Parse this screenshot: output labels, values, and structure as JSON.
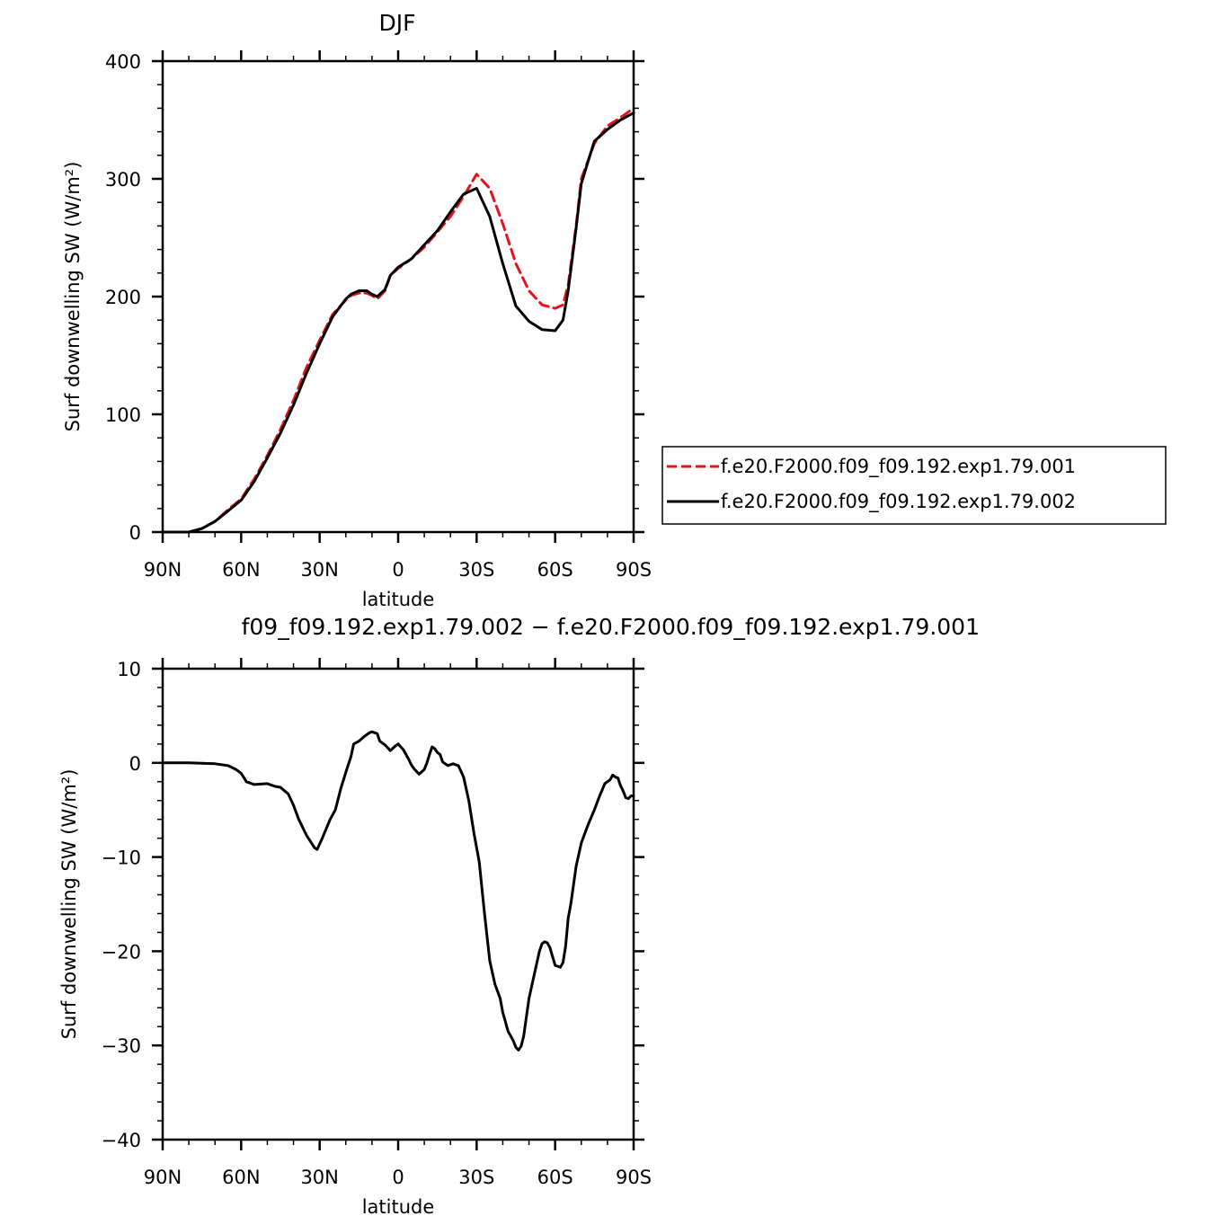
{
  "chart_data": [
    {
      "type": "line",
      "title": "DJF",
      "xlabel": "latitude",
      "ylabel": "Surf downwelling SW (W/m²)",
      "xlim": [
        -90,
        90
      ],
      "ylim": [
        0,
        400
      ],
      "x_ticks": [
        -90,
        -60,
        -30,
        0,
        30,
        60,
        90
      ],
      "x_tick_labels": [
        "90N",
        "60N",
        "30N",
        "0",
        "30S",
        "60S",
        "90S"
      ],
      "y_ticks": [
        0,
        100,
        200,
        300,
        400
      ],
      "y_tick_labels": [
        "0",
        "100",
        "200",
        "300",
        "400"
      ],
      "grid": false,
      "legend_position": "right",
      "series": [
        {
          "name": "f.e20.F2000.f09_f09.192.exp1.79.001",
          "color": "#e8101a",
          "dash": "dashed",
          "x": [
            -90,
            -80,
            -75,
            -70,
            -65,
            -60,
            -55,
            -50,
            -45,
            -40,
            -35,
            -30,
            -25,
            -20,
            -18,
            -15,
            -12,
            -10,
            -8,
            -5,
            -3,
            0,
            5,
            10,
            15,
            20,
            25,
            30,
            35,
            40,
            45,
            50,
            55,
            60,
            63,
            65,
            68,
            70,
            75,
            80,
            85,
            90
          ],
          "y": [
            0,
            0,
            3,
            9,
            19,
            28,
            45,
            65,
            87,
            112,
            140,
            163,
            185,
            197,
            201,
            203,
            203,
            201,
            198,
            205,
            218,
            224,
            232,
            242,
            255,
            268,
            285,
            304,
            292,
            262,
            228,
            205,
            193,
            190,
            193,
            210,
            260,
            300,
            330,
            345,
            352,
            360
          ]
        },
        {
          "name": "f.e20.F2000.f09_f09.192.exp1.79.002",
          "color": "#000000",
          "dash": "solid",
          "x": [
            -90,
            -80,
            -75,
            -70,
            -65,
            -60,
            -55,
            -50,
            -45,
            -40,
            -35,
            -30,
            -25,
            -20,
            -18,
            -15,
            -12,
            -10,
            -8,
            -5,
            -3,
            0,
            5,
            10,
            15,
            20,
            25,
            30,
            35,
            40,
            45,
            50,
            55,
            60,
            63,
            65,
            68,
            70,
            75,
            80,
            85,
            90
          ],
          "y": [
            0,
            0,
            3,
            9,
            18,
            27,
            43,
            63,
            84,
            108,
            135,
            160,
            183,
            198,
            202,
            205,
            205,
            202,
            200,
            206,
            218,
            225,
            232,
            244,
            256,
            272,
            287,
            292,
            268,
            228,
            192,
            179,
            172,
            171,
            180,
            205,
            258,
            296,
            332,
            342,
            350,
            356
          ]
        }
      ]
    },
    {
      "type": "line",
      "title": "f09_f09.192.exp1.79.002 − f.e20.F2000.f09_f09.192.exp1.79.001",
      "xlabel": "latitude",
      "ylabel": "Surf downwelling SW (W/m²)",
      "xlim": [
        -90,
        90
      ],
      "ylim": [
        -40,
        10
      ],
      "x_ticks": [
        -90,
        -60,
        -30,
        0,
        30,
        60,
        90
      ],
      "x_tick_labels": [
        "90N",
        "60N",
        "30N",
        "0",
        "30S",
        "60S",
        "90S"
      ],
      "y_ticks": [
        -40,
        -30,
        -20,
        -10,
        0,
        10
      ],
      "y_tick_labels": [
        "−40",
        "−30",
        "−20",
        "−10",
        "0",
        "10"
      ],
      "grid": false,
      "series": [
        {
          "color": "#000000",
          "dash": "solid",
          "x": [
            -90,
            -80,
            -70,
            -65,
            -62,
            -60,
            -58,
            -55,
            -50,
            -47,
            -45,
            -42,
            -40,
            -38,
            -35,
            -32,
            -31,
            -29,
            -26,
            -24,
            -22,
            -20,
            -18,
            -17,
            -15,
            -13,
            -11,
            -10,
            -8,
            -7,
            -5,
            -3,
            -1,
            0,
            2,
            4,
            5,
            6,
            8,
            10,
            11,
            12,
            13,
            14,
            15,
            16,
            17,
            19,
            21,
            23,
            25,
            27,
            29,
            31,
            33,
            35,
            37,
            39,
            40,
            41,
            42,
            43,
            44,
            45,
            46,
            47,
            48,
            50,
            52,
            54,
            55,
            56,
            57,
            58,
            60,
            62,
            63,
            64,
            65,
            66,
            68,
            70,
            72,
            73,
            75,
            77,
            79,
            81,
            82,
            83,
            84,
            85,
            86,
            87,
            88,
            89,
            90
          ],
          "y": [
            0,
            0,
            -0.1,
            -0.3,
            -0.7,
            -1.1,
            -2,
            -2.3,
            -2.2,
            -2.5,
            -2.6,
            -3.3,
            -4.5,
            -6,
            -7.7,
            -9,
            -9.2,
            -8,
            -6,
            -5,
            -2.8,
            -1,
            0.7,
            2,
            2.3,
            2.8,
            3.2,
            3.3,
            3.1,
            2.3,
            1.9,
            1.3,
            1.8,
            2,
            1.4,
            0.4,
            -0.2,
            -0.6,
            -1.2,
            -0.7,
            0,
            0.9,
            1.7,
            1.5,
            1.1,
            0.9,
            0.1,
            -0.3,
            -0.1,
            -0.3,
            -1.5,
            -4,
            -7.5,
            -10.5,
            -16,
            -21,
            -23.5,
            -25,
            -26.5,
            -27.5,
            -28.5,
            -29,
            -29.5,
            -30.2,
            -30.5,
            -30.1,
            -29,
            -25,
            -22.5,
            -20,
            -19.2,
            -19,
            -19.1,
            -19.6,
            -21.5,
            -21.7,
            -21.2,
            -19.5,
            -16.5,
            -15,
            -11,
            -8.5,
            -7,
            -6.3,
            -5,
            -3.5,
            -2.2,
            -1.8,
            -1.3,
            -1.5,
            -1.6,
            -2.4,
            -3,
            -3.7,
            -3.8,
            -3.5,
            -3.5
          ]
        }
      ]
    }
  ]
}
